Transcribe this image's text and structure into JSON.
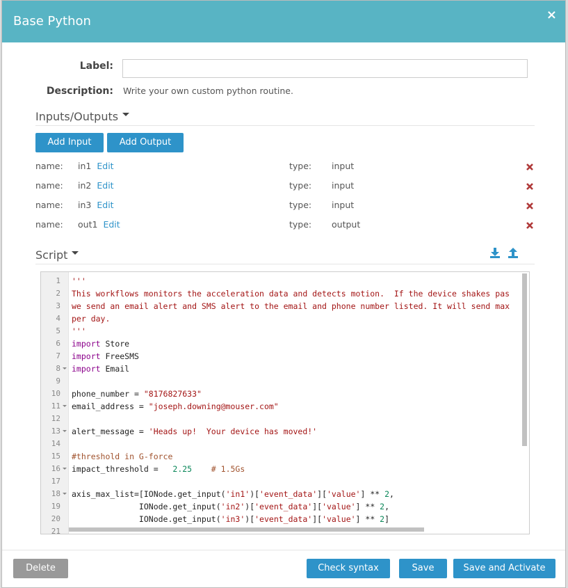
{
  "header": {
    "title": "Base Python",
    "close": "×"
  },
  "form": {
    "label": "Label:",
    "description_label": "Description:",
    "description": "Write your own custom python routine."
  },
  "io": {
    "title": "Inputs/Outputs",
    "add_input": "Add Input",
    "add_output": "Add Output",
    "rows": [
      {
        "name_label": "name:",
        "name": "in1",
        "edit": "Edit",
        "type_label": "type:",
        "type": "input"
      },
      {
        "name_label": "name:",
        "name": "in2",
        "edit": "Edit",
        "type_label": "type:",
        "type": "input"
      },
      {
        "name_label": "name:",
        "name": "in3",
        "edit": "Edit",
        "type_label": "type:",
        "type": "input"
      },
      {
        "name_label": "name:",
        "name": "out1",
        "edit": "Edit",
        "type_label": "type:",
        "type": "output"
      }
    ]
  },
  "script": {
    "title": "Script",
    "lines": [
      {
        "number": "1",
        "tokens": [
          {
            "text": "'''",
            "color": "#a31515"
          }
        ]
      },
      {
        "number": "2",
        "tokens": [
          {
            "text": "This workflows monitors the acceleration data and detects motion.  If the device shakes pas",
            "color": "#a31515"
          }
        ]
      },
      {
        "number": "3",
        "tokens": [
          {
            "text": "we send an email alert and SMS alert to the email and phone number listed. It will send max",
            "color": "#a31515"
          }
        ]
      },
      {
        "number": "4",
        "tokens": [
          {
            "text": "per day.",
            "color": "#a31515"
          }
        ]
      },
      {
        "number": "5",
        "tokens": [
          {
            "text": "'''",
            "color": "#a31515"
          }
        ]
      },
      {
        "number": "6",
        "tokens": [
          {
            "text": "import",
            "color": "#8b008b"
          },
          {
            "text": " Store",
            "color": "#222222"
          }
        ]
      },
      {
        "number": "7",
        "tokens": [
          {
            "text": "import",
            "color": "#8b008b"
          },
          {
            "text": " FreeSMS",
            "color": "#222222"
          }
        ]
      },
      {
        "number": "8",
        "fold": true,
        "tokens": [
          {
            "text": "import",
            "color": "#8b008b"
          },
          {
            "text": " Email",
            "color": "#222222"
          }
        ]
      },
      {
        "number": "9",
        "tokens": []
      },
      {
        "number": "10",
        "tokens": [
          {
            "text": "phone_number = ",
            "color": "#222222"
          },
          {
            "text": "\"8176827633\"",
            "color": "#a31515"
          }
        ]
      },
      {
        "number": "11",
        "fold": true,
        "tokens": [
          {
            "text": "email_address = ",
            "color": "#222222"
          },
          {
            "text": "\"joseph.downing@mouser.com\"",
            "color": "#a31515"
          }
        ]
      },
      {
        "number": "12",
        "tokens": []
      },
      {
        "number": "13",
        "fold": true,
        "tokens": [
          {
            "text": "alert_message = ",
            "color": "#222222"
          },
          {
            "text": "'Heads up!  Your device has moved!'",
            "color": "#a31515"
          }
        ]
      },
      {
        "number": "14",
        "tokens": []
      },
      {
        "number": "15",
        "tokens": [
          {
            "text": "#threshold in G-force",
            "color": "#a0522d"
          }
        ]
      },
      {
        "number": "16",
        "fold": true,
        "tokens": [
          {
            "text": "impact_threshold = ",
            "color": "#222222"
          },
          {
            "text": "  2.25",
            "color": "#098658"
          },
          {
            "text": "    # 1.5Gs",
            "color": "#a0522d"
          }
        ]
      },
      {
        "number": "17",
        "tokens": []
      },
      {
        "number": "18",
        "fold": true,
        "tokens": [
          {
            "text": "axis_max_list=[IONode.get_input(",
            "color": "#222222"
          },
          {
            "text": "'in1'",
            "color": "#a31515"
          },
          {
            "text": ")[",
            "color": "#222222"
          },
          {
            "text": "'event_data'",
            "color": "#a31515"
          },
          {
            "text": "][",
            "color": "#222222"
          },
          {
            "text": "'value'",
            "color": "#a31515"
          },
          {
            "text": "] ** ",
            "color": "#222222"
          },
          {
            "text": "2",
            "color": "#098658"
          },
          {
            "text": ",",
            "color": "#222222"
          }
        ]
      },
      {
        "number": "19",
        "tokens": [
          {
            "text": "              IONode.get_input(",
            "color": "#222222"
          },
          {
            "text": "'in2'",
            "color": "#a31515"
          },
          {
            "text": ")[",
            "color": "#222222"
          },
          {
            "text": "'event_data'",
            "color": "#a31515"
          },
          {
            "text": "][",
            "color": "#222222"
          },
          {
            "text": "'value'",
            "color": "#a31515"
          },
          {
            "text": "] ** ",
            "color": "#222222"
          },
          {
            "text": "2",
            "color": "#098658"
          },
          {
            "text": ",",
            "color": "#222222"
          }
        ]
      },
      {
        "number": "20",
        "tokens": [
          {
            "text": "              IONode.get_input(",
            "color": "#222222"
          },
          {
            "text": "'in3'",
            "color": "#a31515"
          },
          {
            "text": ")[",
            "color": "#222222"
          },
          {
            "text": "'event_data'",
            "color": "#a31515"
          },
          {
            "text": "][",
            "color": "#222222"
          },
          {
            "text": "'value'",
            "color": "#a31515"
          },
          {
            "text": "] ** ",
            "color": "#222222"
          },
          {
            "text": "2",
            "color": "#098658"
          },
          {
            "text": "]",
            "color": "#222222"
          }
        ]
      },
      {
        "number": "21",
        "tokens": []
      }
    ]
  },
  "footer": {
    "delete": "Delete",
    "check": "Check syntax",
    "save": "Save",
    "activate": "Save and Activate"
  }
}
